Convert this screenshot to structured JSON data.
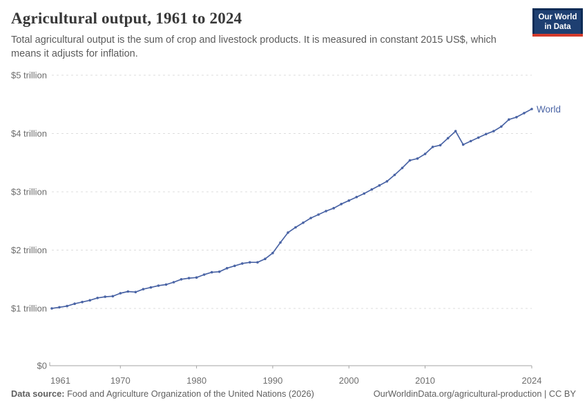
{
  "header": {
    "title": "Agricultural output, 1961 to 2024",
    "subtitle": "Total agricultural output is the sum of crop and livestock products. It is measured in constant 2015 US$, which means it adjusts for inflation.",
    "logo": {
      "line1": "Our World",
      "line2": "in Data",
      "navy": "#0c2b55",
      "panel": "#1e3f71",
      "red": "#d43a2b"
    }
  },
  "footer": {
    "data_source_label": "Data source:",
    "data_source_text": " Food and Agriculture Organization of the United Nations (2026)",
    "credit": "OurWorldinData.org/agricultural-production | CC BY"
  },
  "chart_data": {
    "type": "line",
    "title": "Agricultural output, 1961 to 2024",
    "unit": "constant 2015 US$ (trillions)",
    "xlim": [
      1961,
      2024
    ],
    "ylim": [
      0,
      5
    ],
    "grid": true,
    "legend": "label-at-line-end",
    "x_ticks": [
      {
        "year": 1961,
        "label": "1961"
      },
      {
        "year": 1970,
        "label": "1970"
      },
      {
        "year": 1980,
        "label": "1980"
      },
      {
        "year": 1990,
        "label": "1990"
      },
      {
        "year": 2000,
        "label": "2000"
      },
      {
        "year": 2010,
        "label": "2010"
      },
      {
        "year": 2024,
        "label": "2024"
      }
    ],
    "y_ticks": [
      {
        "value": 0,
        "label": "$0"
      },
      {
        "value": 1,
        "label": "$1 trillion"
      },
      {
        "value": 2,
        "label": "$2 trillion"
      },
      {
        "value": 3,
        "label": "$3 trillion"
      },
      {
        "value": 4,
        "label": "$4 trillion"
      },
      {
        "value": 5,
        "label": "$5 trillion"
      }
    ],
    "x": [
      1961,
      1962,
      1963,
      1964,
      1965,
      1966,
      1967,
      1968,
      1969,
      1970,
      1971,
      1972,
      1973,
      1974,
      1975,
      1976,
      1977,
      1978,
      1979,
      1980,
      1981,
      1982,
      1983,
      1984,
      1985,
      1986,
      1987,
      1988,
      1989,
      1990,
      1991,
      1992,
      1993,
      1994,
      1995,
      1996,
      1997,
      1998,
      1999,
      2000,
      2001,
      2002,
      2003,
      2004,
      2005,
      2006,
      2007,
      2008,
      2009,
      2010,
      2011,
      2012,
      2013,
      2014,
      2015,
      2016,
      2017,
      2018,
      2019,
      2020,
      2021,
      2022,
      2023,
      2024
    ],
    "series": [
      {
        "name": "World",
        "color": "#4a64a5",
        "values": [
          1.0,
          1.02,
          1.04,
          1.08,
          1.11,
          1.14,
          1.18,
          1.2,
          1.21,
          1.26,
          1.29,
          1.28,
          1.33,
          1.36,
          1.39,
          1.41,
          1.45,
          1.5,
          1.52,
          1.53,
          1.58,
          1.62,
          1.63,
          1.69,
          1.73,
          1.77,
          1.79,
          1.79,
          1.85,
          1.95,
          2.13,
          2.3,
          2.39,
          2.47,
          2.55,
          2.61,
          2.67,
          2.72,
          2.79,
          2.85,
          2.91,
          2.97,
          3.04,
          3.11,
          3.18,
          3.29,
          3.41,
          3.54,
          3.57,
          3.65,
          3.77,
          3.8,
          3.92,
          4.04,
          3.81,
          3.87,
          3.93,
          3.99,
          4.04,
          4.12,
          4.24,
          4.28,
          4.35,
          4.42
        ]
      }
    ],
    "style": {
      "grid_color": "#dcdcdc",
      "axis_color": "#a3a3a3",
      "tick_label_color": "#6e6e6e"
    }
  }
}
